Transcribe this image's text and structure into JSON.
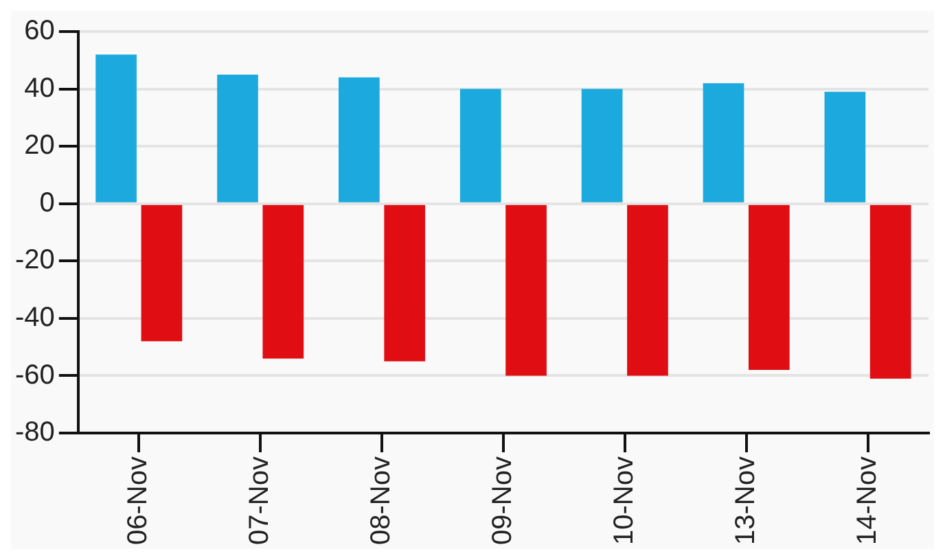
{
  "chart_data": {
    "type": "bar",
    "categories": [
      "06-Nov",
      "07-Nov",
      "08-Nov",
      "09-Nov",
      "10-Nov",
      "13-Nov",
      "14-Nov"
    ],
    "series": [
      {
        "color": "#1caade",
        "values": [
          52,
          45,
          44,
          40,
          40,
          42,
          39
        ]
      },
      {
        "color": "#e00e12",
        "values": [
          -48,
          -54,
          -55,
          -60,
          -60,
          -58,
          -61
        ]
      }
    ],
    "ylim": [
      -80,
      60
    ],
    "yticks": [
      -80,
      -60,
      -40,
      -20,
      0,
      20,
      40,
      60
    ],
    "grid": "y",
    "legend": false
  }
}
